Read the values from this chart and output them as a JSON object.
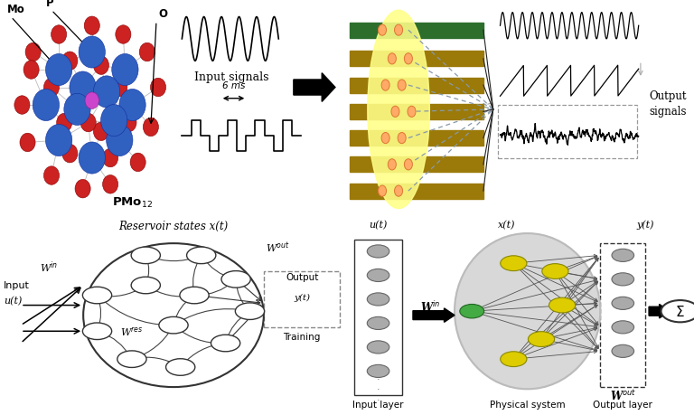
{
  "bg_color": "#ffffff",
  "panels": {
    "top_left": {
      "atom_blue_color": "#3060c0",
      "atom_red_color": "#cc2222",
      "atom_magenta_color": "#cc44cc",
      "label_Mo": "Mo",
      "label_P": "P",
      "label_O": "O",
      "label_formula": "PMo$_{12}$"
    },
    "top_middle": {
      "label_input": "Input signals",
      "label_time": "6 ms"
    },
    "top_reservoir": {
      "electrode_color": "#9b7a0a",
      "input_electrode_color": "#2d6e2d",
      "yellow_color": "#ffff88",
      "dot_color": "#ffaa66",
      "dashed_color": "#8899aa",
      "solid_color": "#222222"
    },
    "top_right": {
      "label_output": "Output signals"
    },
    "bottom_left": {
      "label_title": "Reservoir states x(t)"
    },
    "bottom_right": {
      "node_gray": "#aaaaaa",
      "node_yellow": "#ddcc00",
      "node_green": "#44aa44",
      "cloud_color": "#cccccc",
      "label_ut": "u(t)",
      "label_xt": "x(t)",
      "label_yt": "y(t)",
      "label_Win": "W$^{in}$",
      "label_Wout": "W$^{out}$",
      "label_input_layer": "Input layer",
      "label_physical": "Physical system",
      "label_output_layer": "Output layer"
    }
  }
}
